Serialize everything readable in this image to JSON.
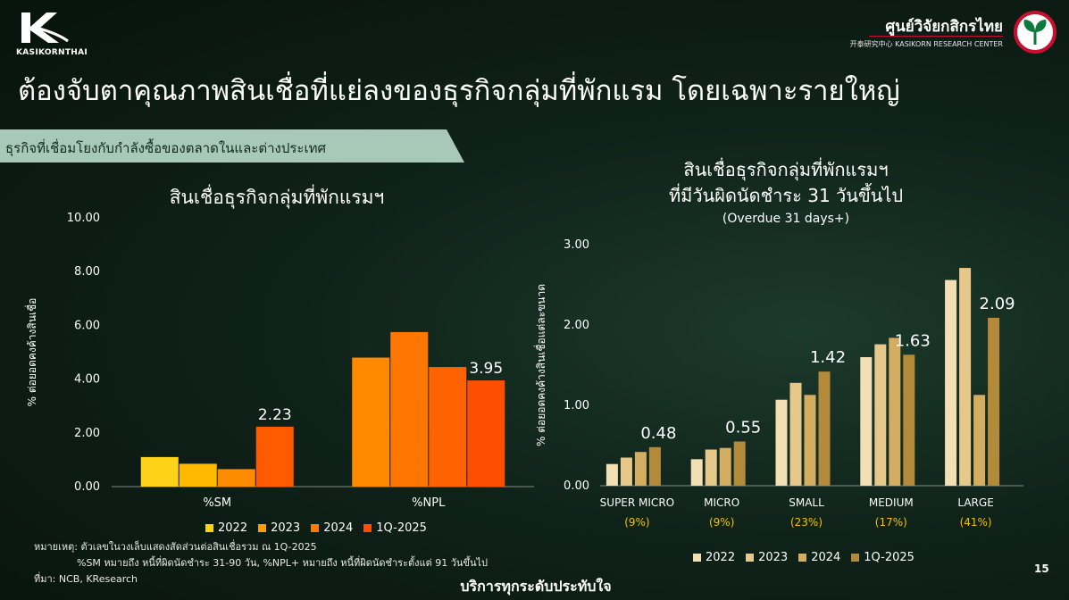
{
  "header": {
    "brand_left": "KASIKORNTHAI",
    "brand_right": "ศูนย์วิจัยกสิกรไทย",
    "brand_right_sub": "开泰研究中心 KASIKORN RESEARCH CENTER",
    "title": "ต้องจับตาคุณภาพสินเชื่อที่แย่ลงของธุรกิจกลุ่มที่พักแรม โดยเฉพาะรายใหญ่",
    "banner": "ธุรกิจที่เชื่อมโยงกับกำลังซื้อของตลาดในและต่างประเทศ"
  },
  "colors": {
    "left_series": [
      "#ffd21a",
      "#ffba00",
      "#ff8c00",
      "#ff5a00"
    ],
    "left_series_npl": [
      "#ff8a00",
      "#ff7600",
      "#ff6200",
      "#ff4e00"
    ],
    "right_series": [
      "#f3dfb4",
      "#e6c98a",
      "#d2ad62",
      "#b3893a"
    ]
  },
  "chart_data": [
    {
      "type": "bar",
      "title": "สินเชื่อธุรกิจกลุ่มที่พักแรมฯ",
      "ylabel": "% ต่อยอดคงค้างสินเชื่อ",
      "ylim": [
        0,
        10
      ],
      "yticks": [
        "0.00",
        "2.00",
        "4.00",
        "6.00",
        "8.00",
        "10.00"
      ],
      "categories": [
        "%SM",
        "%NPL"
      ],
      "series": [
        {
          "name": "2022",
          "values": [
            1.1,
            4.8
          ]
        },
        {
          "name": "2023",
          "values": [
            0.85,
            5.75
          ]
        },
        {
          "name": "2024",
          "values": [
            0.65,
            4.45
          ]
        },
        {
          "name": "1Q-2025",
          "values": [
            2.23,
            3.95
          ]
        }
      ],
      "data_labels": [
        "2.23",
        "3.95"
      ],
      "legend": "bottom"
    },
    {
      "type": "bar",
      "title": "สินเชื่อธุรกิจกลุ่มที่พักแรมฯ",
      "subtitle": "ที่มีวันผิดนัดชำระ 31 วันขึ้นไป",
      "note": "(Overdue 31 days+)",
      "ylabel": "% ต่อยอดคงค้างสินเชื่อแต่ละขนาด",
      "ylim": [
        0,
        3
      ],
      "yticks": [
        "0.00",
        "1.00",
        "2.00",
        "3.00"
      ],
      "categories": [
        "SUPER MICRO",
        "MICRO",
        "SMALL",
        "MEDIUM",
        "LARGE"
      ],
      "category_shares": [
        "(9%)",
        "(9%)",
        "(23%)",
        "(17%)",
        "(41%)"
      ],
      "series": [
        {
          "name": "2022",
          "values": [
            0.27,
            0.33,
            1.07,
            1.6,
            2.56
          ]
        },
        {
          "name": "2023",
          "values": [
            0.35,
            0.45,
            1.28,
            1.76,
            2.71
          ]
        },
        {
          "name": "2024",
          "values": [
            0.42,
            0.47,
            1.13,
            1.84,
            1.13
          ]
        },
        {
          "name": "1Q-2025",
          "values": [
            0.48,
            0.55,
            1.42,
            1.63,
            2.09
          ]
        }
      ],
      "data_labels": [
        "0.48",
        "0.55",
        "1.42",
        "1.63",
        "2.09"
      ],
      "legend": "bottom"
    }
  ],
  "footer": {
    "note1": "หมายเหตุ: ตัวเลขในวงเล็บแสดงสัดส่วนต่อสินเชื่อรวม ณ 1Q-2025",
    "note2": "%SM หมายถึง หนี้ที่ผิดนัดชำระ 31-90 วัน, %NPL+ หมายถึง หนี้ที่ผิดนัดชำระตั้งแต่ 91 วันขึ้นไป",
    "source": "ที่มา: NCB, KResearch",
    "tagline": "บริการทุกระดับประทับใจ",
    "page": "15"
  }
}
